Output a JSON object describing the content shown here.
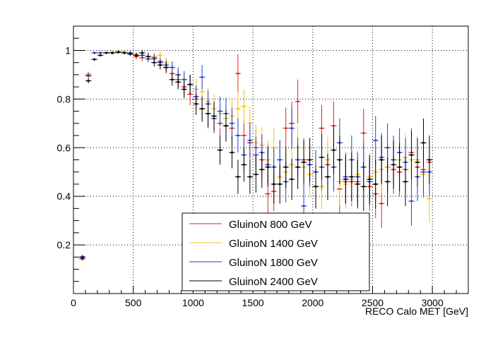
{
  "chart_data": {
    "type": "scatter",
    "title": "",
    "xlabel": "RECO Calo MET [GeV]",
    "ylabel": "",
    "xlim": [
      0,
      3300
    ],
    "ylim": [
      0,
      1.1
    ],
    "x_ticks": [
      0,
      500,
      1000,
      1500,
      2000,
      2500,
      3000
    ],
    "x_tick_labels": [
      "0",
      "500",
      "1000",
      "1500",
      "2000",
      "2500",
      "3000"
    ],
    "y_ticks": [
      0.2,
      0.4,
      0.6,
      0.8,
      1.0
    ],
    "y_tick_labels": [
      "0.2",
      "0.4",
      "0.6",
      "0.8",
      "1"
    ],
    "grid": true,
    "legend_position": "bottom-center",
    "bin_half_width": 25,
    "series": [
      {
        "name": "GluinoN 800 GeV",
        "color": "#e0241f",
        "points": [
          [
            75,
            0.142,
            0.008
          ],
          [
            125,
            0.895,
            0.01
          ],
          [
            175,
            0.99,
            0.006
          ],
          [
            225,
            0.99,
            0.005
          ],
          [
            275,
            0.99,
            0.005
          ],
          [
            325,
            0.99,
            0.006
          ],
          [
            375,
            0.995,
            0.006
          ],
          [
            425,
            0.993,
            0.007
          ],
          [
            475,
            0.988,
            0.008
          ],
          [
            525,
            0.975,
            0.012
          ],
          [
            575,
            0.97,
            0.014
          ],
          [
            625,
            0.975,
            0.016
          ],
          [
            675,
            0.965,
            0.02
          ],
          [
            725,
            0.955,
            0.022
          ],
          [
            775,
            0.93,
            0.025
          ],
          [
            825,
            0.905,
            0.03
          ],
          [
            875,
            0.88,
            0.035
          ],
          [
            925,
            0.85,
            0.04
          ],
          [
            975,
            0.82,
            0.045
          ],
          [
            1025,
            0.8,
            0.05
          ],
          [
            1075,
            0.76,
            0.055
          ],
          [
            1125,
            0.74,
            0.06
          ],
          [
            1175,
            0.72,
            0.06
          ],
          [
            1225,
            0.7,
            0.065
          ],
          [
            1275,
            0.69,
            0.065
          ],
          [
            1325,
            0.68,
            0.07
          ],
          [
            1375,
            0.905,
            0.08
          ],
          [
            1425,
            0.65,
            0.07
          ],
          [
            1475,
            0.62,
            0.07
          ],
          [
            1525,
            0.6,
            0.075
          ],
          [
            1575,
            0.55,
            0.075
          ],
          [
            1625,
            0.41,
            0.08
          ],
          [
            1675,
            0.42,
            0.08
          ],
          [
            1725,
            0.55,
            0.08
          ],
          [
            1775,
            0.68,
            0.085
          ],
          [
            1825,
            0.7,
            0.09
          ],
          [
            1875,
            0.79,
            0.09
          ],
          [
            1925,
            0.55,
            0.09
          ],
          [
            1975,
            0.53,
            0.09
          ],
          [
            2025,
            0.44,
            0.09
          ],
          [
            2075,
            0.68,
            0.095
          ],
          [
            2125,
            0.53,
            0.095
          ],
          [
            2175,
            0.69,
            0.1
          ],
          [
            2225,
            0.43,
            0.1
          ],
          [
            2275,
            0.46,
            0.1
          ],
          [
            2325,
            0.46,
            0.1
          ],
          [
            2375,
            0.46,
            0.1
          ],
          [
            2425,
            0.66,
            0.1
          ],
          [
            2475,
            0.44,
            0.1
          ],
          [
            2525,
            0.41,
            0.1
          ],
          [
            2575,
            0.37,
            0.1
          ],
          [
            2625,
            0.52,
            0.1
          ],
          [
            2675,
            0.51,
            0.1
          ],
          [
            2725,
            0.5,
            0.1
          ],
          [
            2775,
            0.51,
            0.1
          ],
          [
            2825,
            0.58,
            0.1
          ],
          [
            2875,
            0.52,
            0.1
          ],
          [
            2925,
            0.51,
            0.1
          ],
          [
            2975,
            0.54,
            0.1
          ]
        ]
      },
      {
        "name": "GluinoN 1400 GeV",
        "color": "#f0c419",
        "points": [
          [
            75,
            0.148,
            0.008
          ],
          [
            125,
            0.905,
            0.01
          ],
          [
            175,
            0.99,
            0.006
          ],
          [
            225,
            0.99,
            0.005
          ],
          [
            275,
            0.99,
            0.005
          ],
          [
            325,
            0.992,
            0.006
          ],
          [
            375,
            0.995,
            0.006
          ],
          [
            425,
            0.993,
            0.007
          ],
          [
            475,
            0.99,
            0.008
          ],
          [
            525,
            0.985,
            0.01
          ],
          [
            575,
            0.98,
            0.012
          ],
          [
            625,
            0.975,
            0.014
          ],
          [
            675,
            0.975,
            0.016
          ],
          [
            725,
            0.98,
            0.018
          ],
          [
            775,
            0.95,
            0.02
          ],
          [
            825,
            0.93,
            0.025
          ],
          [
            875,
            0.9,
            0.03
          ],
          [
            925,
            0.88,
            0.035
          ],
          [
            975,
            0.86,
            0.04
          ],
          [
            1025,
            0.84,
            0.045
          ],
          [
            1075,
            0.83,
            0.05
          ],
          [
            1125,
            0.79,
            0.055
          ],
          [
            1175,
            0.76,
            0.06
          ],
          [
            1225,
            0.74,
            0.06
          ],
          [
            1275,
            0.72,
            0.065
          ],
          [
            1325,
            0.73,
            0.065
          ],
          [
            1375,
            0.76,
            0.07
          ],
          [
            1425,
            0.77,
            0.07
          ],
          [
            1475,
            0.7,
            0.07
          ],
          [
            1525,
            0.62,
            0.075
          ],
          [
            1575,
            0.61,
            0.075
          ],
          [
            1625,
            0.55,
            0.08
          ],
          [
            1675,
            0.6,
            0.08
          ],
          [
            1725,
            0.48,
            0.08
          ],
          [
            1775,
            0.5,
            0.085
          ],
          [
            1825,
            0.53,
            0.085
          ],
          [
            1875,
            0.6,
            0.09
          ],
          [
            1925,
            0.52,
            0.09
          ],
          [
            1975,
            0.49,
            0.09
          ],
          [
            2025,
            0.5,
            0.09
          ],
          [
            2075,
            0.44,
            0.095
          ],
          [
            2125,
            0.55,
            0.095
          ],
          [
            2175,
            0.52,
            0.1
          ],
          [
            2225,
            0.46,
            0.1
          ],
          [
            2275,
            0.45,
            0.1
          ],
          [
            2325,
            0.47,
            0.1
          ],
          [
            2375,
            0.49,
            0.1
          ],
          [
            2425,
            0.52,
            0.1
          ],
          [
            2475,
            0.48,
            0.1
          ],
          [
            2525,
            0.5,
            0.1
          ],
          [
            2575,
            0.51,
            0.1
          ],
          [
            2625,
            0.52,
            0.1
          ],
          [
            2675,
            0.53,
            0.1
          ],
          [
            2725,
            0.55,
            0.1
          ],
          [
            2775,
            0.56,
            0.1
          ],
          [
            2825,
            0.55,
            0.1
          ],
          [
            2875,
            0.55,
            0.1
          ],
          [
            2925,
            0.49,
            0.1
          ],
          [
            2975,
            0.39,
            0.1
          ]
        ]
      },
      {
        "name": "GluinoN 1800 GeV",
        "color": "#1f3fd0",
        "points": [
          [
            75,
            0.152,
            0.008
          ],
          [
            125,
            0.898,
            0.01
          ],
          [
            175,
            0.99,
            0.006
          ],
          [
            225,
            0.99,
            0.005
          ],
          [
            275,
            0.99,
            0.005
          ],
          [
            325,
            0.99,
            0.006
          ],
          [
            375,
            0.993,
            0.006
          ],
          [
            425,
            0.99,
            0.007
          ],
          [
            475,
            0.99,
            0.008
          ],
          [
            525,
            0.98,
            0.01
          ],
          [
            575,
            0.98,
            0.012
          ],
          [
            625,
            0.965,
            0.014
          ],
          [
            675,
            0.97,
            0.016
          ],
          [
            725,
            0.95,
            0.018
          ],
          [
            775,
            0.94,
            0.02
          ],
          [
            825,
            0.93,
            0.025
          ],
          [
            875,
            0.9,
            0.03
          ],
          [
            925,
            0.88,
            0.035
          ],
          [
            975,
            0.86,
            0.04
          ],
          [
            1025,
            0.81,
            0.045
          ],
          [
            1075,
            0.89,
            0.05
          ],
          [
            1125,
            0.78,
            0.055
          ],
          [
            1175,
            0.72,
            0.06
          ],
          [
            1225,
            0.75,
            0.06
          ],
          [
            1275,
            0.74,
            0.065
          ],
          [
            1325,
            0.7,
            0.065
          ],
          [
            1375,
            0.65,
            0.07
          ],
          [
            1425,
            0.57,
            0.07
          ],
          [
            1475,
            0.63,
            0.07
          ],
          [
            1525,
            0.57,
            0.075
          ],
          [
            1575,
            0.58,
            0.075
          ],
          [
            1625,
            0.53,
            0.08
          ],
          [
            1675,
            0.52,
            0.08
          ],
          [
            1725,
            0.55,
            0.08
          ],
          [
            1775,
            0.46,
            0.085
          ],
          [
            1825,
            0.68,
            0.085
          ],
          [
            1875,
            0.55,
            0.09
          ],
          [
            1925,
            0.36,
            0.09
          ],
          [
            1975,
            0.53,
            0.09
          ],
          [
            2025,
            0.5,
            0.09
          ],
          [
            2075,
            0.52,
            0.095
          ],
          [
            2125,
            0.48,
            0.095
          ],
          [
            2175,
            0.52,
            0.1
          ],
          [
            2225,
            0.62,
            0.1
          ],
          [
            2275,
            0.48,
            0.1
          ],
          [
            2325,
            0.55,
            0.1
          ],
          [
            2375,
            0.48,
            0.1
          ],
          [
            2425,
            0.52,
            0.1
          ],
          [
            2475,
            0.46,
            0.1
          ],
          [
            2525,
            0.63,
            0.1
          ],
          [
            2575,
            0.56,
            0.1
          ],
          [
            2625,
            0.6,
            0.1
          ],
          [
            2675,
            0.55,
            0.1
          ],
          [
            2725,
            0.58,
            0.1
          ],
          [
            2775,
            0.54,
            0.1
          ],
          [
            2825,
            0.38,
            0.1
          ],
          [
            2875,
            0.48,
            0.1
          ],
          [
            2925,
            0.5,
            0.1
          ],
          [
            2975,
            0.5,
            0.1
          ]
        ]
      },
      {
        "name": "GluinoN 2400 GeV",
        "color": "#000000",
        "points": [
          [
            75,
            0.147,
            0.008
          ],
          [
            125,
            0.875,
            0.01
          ],
          [
            175,
            0.963,
            0.006
          ],
          [
            225,
            0.98,
            0.005
          ],
          [
            275,
            0.99,
            0.005
          ],
          [
            325,
            0.99,
            0.006
          ],
          [
            375,
            0.992,
            0.006
          ],
          [
            425,
            0.99,
            0.007
          ],
          [
            475,
            0.985,
            0.008
          ],
          [
            525,
            0.98,
            0.01
          ],
          [
            575,
            0.99,
            0.012
          ],
          [
            625,
            0.975,
            0.014
          ],
          [
            675,
            0.95,
            0.016
          ],
          [
            725,
            0.94,
            0.018
          ],
          [
            775,
            0.93,
            0.02
          ],
          [
            825,
            0.88,
            0.025
          ],
          [
            875,
            0.87,
            0.03
          ],
          [
            925,
            0.84,
            0.035
          ],
          [
            975,
            0.86,
            0.04
          ],
          [
            1025,
            0.78,
            0.045
          ],
          [
            1075,
            0.76,
            0.05
          ],
          [
            1125,
            0.74,
            0.055
          ],
          [
            1175,
            0.73,
            0.06
          ],
          [
            1225,
            0.59,
            0.06
          ],
          [
            1275,
            0.69,
            0.065
          ],
          [
            1325,
            0.58,
            0.065
          ],
          [
            1375,
            0.48,
            0.07
          ],
          [
            1425,
            0.53,
            0.07
          ],
          [
            1475,
            0.48,
            0.07
          ],
          [
            1525,
            0.49,
            0.075
          ],
          [
            1575,
            0.51,
            0.075
          ],
          [
            1625,
            0.52,
            0.08
          ],
          [
            1675,
            0.45,
            0.08
          ],
          [
            1725,
            0.45,
            0.08
          ],
          [
            1775,
            0.52,
            0.085
          ],
          [
            1825,
            0.47,
            0.085
          ],
          [
            1875,
            0.52,
            0.09
          ],
          [
            1925,
            0.54,
            0.09
          ],
          [
            1975,
            0.55,
            0.09
          ],
          [
            2025,
            0.44,
            0.09
          ],
          [
            2075,
            0.56,
            0.095
          ],
          [
            2125,
            0.48,
            0.095
          ],
          [
            2175,
            0.59,
            0.1
          ],
          [
            2225,
            0.55,
            0.1
          ],
          [
            2275,
            0.47,
            0.1
          ],
          [
            2325,
            0.48,
            0.1
          ],
          [
            2375,
            0.45,
            0.1
          ],
          [
            2425,
            0.44,
            0.1
          ],
          [
            2475,
            0.47,
            0.1
          ],
          [
            2525,
            0.45,
            0.1
          ],
          [
            2575,
            0.55,
            0.1
          ],
          [
            2625,
            0.46,
            0.1
          ],
          [
            2675,
            0.53,
            0.1
          ],
          [
            2725,
            0.52,
            0.1
          ],
          [
            2775,
            0.46,
            0.1
          ],
          [
            2825,
            0.57,
            0.1
          ],
          [
            2875,
            0.54,
            0.1
          ],
          [
            2925,
            0.62,
            0.1
          ],
          [
            2975,
            0.55,
            0.1
          ]
        ]
      }
    ]
  }
}
